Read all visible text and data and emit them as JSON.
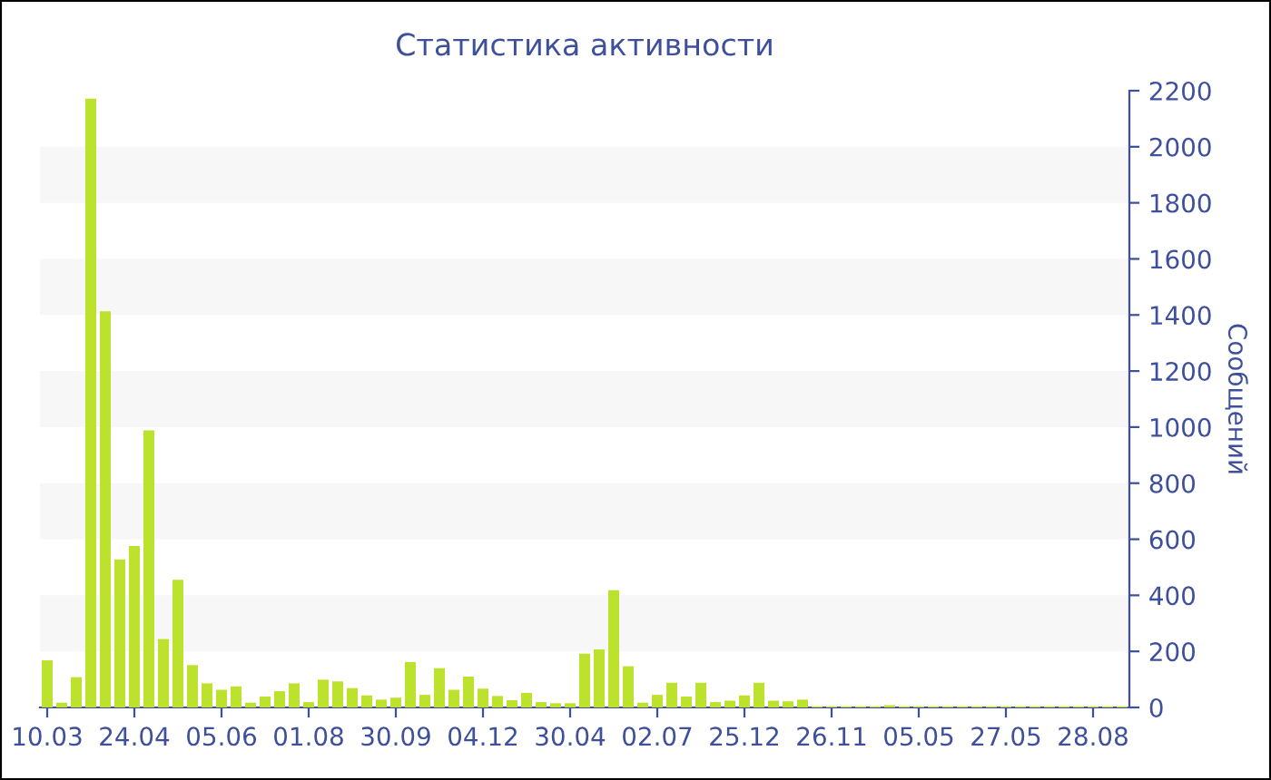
{
  "chart_data": {
    "type": "bar",
    "title": "Статистика активности",
    "ylabel": "Сообщений",
    "categories": [
      "10.03",
      null,
      null,
      null,
      null,
      null,
      "24.04",
      null,
      null,
      null,
      null,
      null,
      "05.06",
      null,
      null,
      null,
      null,
      null,
      "01.08",
      null,
      null,
      null,
      null,
      null,
      "30.09",
      null,
      null,
      null,
      null,
      null,
      "04.12",
      null,
      null,
      null,
      null,
      null,
      "30.04",
      null,
      null,
      null,
      null,
      null,
      "02.07",
      null,
      null,
      null,
      null,
      null,
      "25.12",
      null,
      null,
      null,
      null,
      null,
      "26.11",
      null,
      null,
      null,
      null,
      null,
      "05.05",
      null,
      null,
      null,
      null,
      null,
      "27.05",
      null,
      null,
      null,
      null,
      null,
      "28.08",
      null,
      null
    ],
    "values": [
      168,
      17,
      108,
      2172,
      1413,
      528,
      576,
      988,
      244,
      455,
      151,
      86,
      63,
      75,
      17,
      39,
      58,
      86,
      19,
      99,
      93,
      69,
      43,
      28,
      35,
      162,
      45,
      140,
      63,
      110,
      67,
      41,
      26,
      52,
      19,
      15,
      15,
      192,
      207,
      418,
      147,
      17,
      45,
      88,
      39,
      88,
      19,
      24,
      43,
      88,
      24,
      22,
      28,
      4,
      4,
      4,
      4,
      4,
      8,
      4,
      4,
      4,
      4,
      4,
      4,
      4,
      4,
      4,
      4,
      4,
      4,
      4,
      4,
      4,
      4
    ],
    "color": "#bde22e",
    "ylim": [
      0,
      2200
    ],
    "yticks": [
      0,
      200,
      400,
      600,
      800,
      1000,
      1200,
      1400,
      1600,
      1800,
      2000,
      2200
    ],
    "bands": [
      {
        "axis": "y",
        "from": 200,
        "to": 400,
        "color": "#f7f7f7"
      },
      {
        "axis": "y",
        "from": 600,
        "to": 800,
        "color": "#f7f7f7"
      },
      {
        "axis": "y",
        "from": 1000,
        "to": 1200,
        "color": "#f7f7f7"
      },
      {
        "axis": "y",
        "from": 1400,
        "to": 1600,
        "color": "#f7f7f7"
      },
      {
        "axis": "y",
        "from": 1800,
        "to": 2000,
        "color": "#f7f7f7"
      }
    ],
    "grid": false,
    "legend": false
  }
}
